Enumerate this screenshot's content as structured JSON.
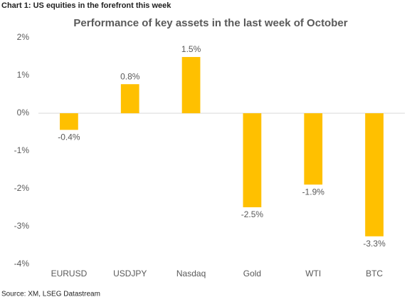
{
  "header": "Chart 1: US equities in the forefront this week",
  "source": "Source: XM, LSEG Datastream",
  "chart_data": {
    "type": "bar",
    "title": "Performance of key assets in the last week of October",
    "categories": [
      "EURUSD",
      "USDJPY",
      "Nasdaq",
      "Gold",
      "WTI",
      "BTC"
    ],
    "values": [
      -0.44,
      0.77,
      1.49,
      -2.49,
      -1.89,
      -3.26
    ],
    "value_labels": [
      "-0.4%",
      "0.8%",
      "1.5%",
      "-2.5%",
      "-1.9%",
      "-3.3%"
    ],
    "color": "#ffc000",
    "ylim": [
      -4,
      2
    ],
    "yticks": [
      {
        "value": 2,
        "label": "2%"
      },
      {
        "value": 1,
        "label": "1%"
      },
      {
        "value": 0,
        "label": "0%"
      },
      {
        "value": -1,
        "label": "-1%"
      },
      {
        "value": -2,
        "label": "-2%"
      },
      {
        "value": -3,
        "label": "-3%"
      },
      {
        "value": -4,
        "label": "-4%"
      }
    ],
    "grid": false
  }
}
